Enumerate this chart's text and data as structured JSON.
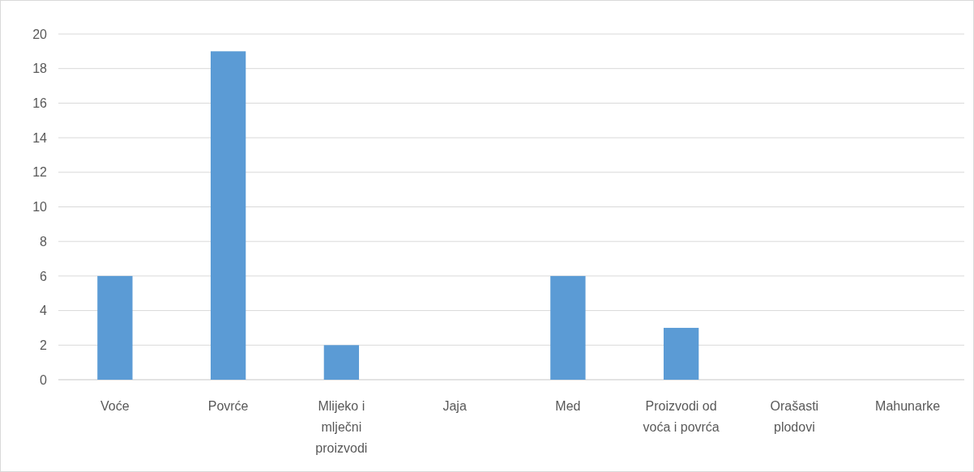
{
  "chart_data": {
    "type": "bar",
    "categories": [
      "Voće",
      "Povrće",
      "Mlijeko i mlječni proizvodi",
      "Jaja",
      "Med",
      "Proizvodi od voća i povrća",
      "Orašasti plodovi",
      "Mahunarke"
    ],
    "values": [
      6,
      19,
      2,
      0,
      6,
      3,
      0,
      0
    ],
    "color": "#5b9bd5",
    "ylim": [
      0,
      20
    ],
    "yticks": [
      0,
      2,
      4,
      6,
      8,
      10,
      12,
      14,
      16,
      18,
      20
    ],
    "grid": "y"
  }
}
